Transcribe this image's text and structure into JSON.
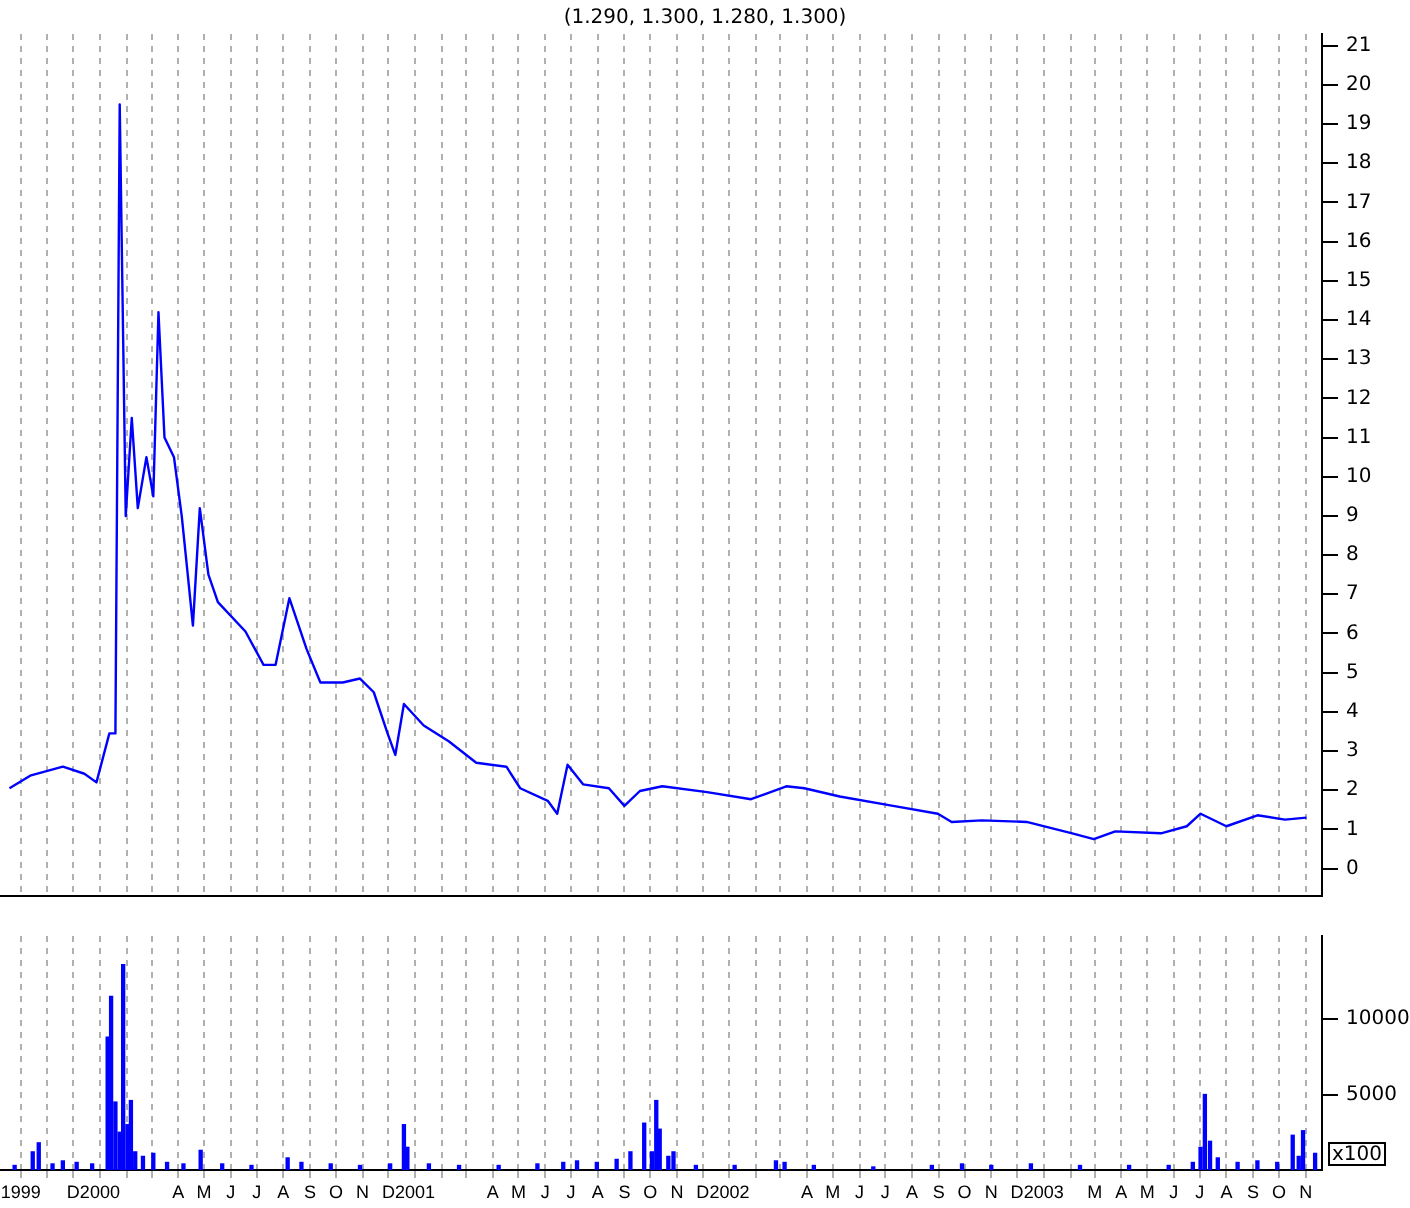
{
  "chart_data": [
    {
      "type": "line",
      "title": "(1.290, 1.300, 1.280, 1.300)",
      "grid": "x",
      "tick_labels": "y",
      "marker": "none",
      "line_style": "solid",
      "xlim": [
        "1999-09-07",
        "2003-11-20"
      ],
      "xticks": [
        {
          "value": "1999-10-01",
          "label": null
        },
        {
          "value": "1999-11-01",
          "label": null
        },
        {
          "value": "1999-12-01",
          "label": null
        },
        {
          "value": "2000-01-01",
          "label": null
        },
        {
          "value": "2000-02-01",
          "label": null
        },
        {
          "value": "2000-03-01",
          "label": null
        },
        {
          "value": "2000-04-01",
          "label": null
        },
        {
          "value": "2000-05-01",
          "label": null
        },
        {
          "value": "2000-06-01",
          "label": null
        },
        {
          "value": "2000-07-01",
          "label": null
        },
        {
          "value": "2000-08-01",
          "label": null
        },
        {
          "value": "2000-09-01",
          "label": null
        },
        {
          "value": "2000-10-01",
          "label": null
        },
        {
          "value": "2000-11-01",
          "label": null
        },
        {
          "value": "2000-12-01",
          "label": null
        },
        {
          "value": "2001-01-01",
          "label": null
        },
        {
          "value": "2001-02-01",
          "label": null
        },
        {
          "value": "2001-03-01",
          "label": null
        },
        {
          "value": "2001-04-01",
          "label": null
        },
        {
          "value": "2001-05-01",
          "label": null
        },
        {
          "value": "2001-06-01",
          "label": null
        },
        {
          "value": "2001-07-01",
          "label": null
        },
        {
          "value": "2001-08-01",
          "label": null
        },
        {
          "value": "2001-09-01",
          "label": null
        },
        {
          "value": "2001-10-01",
          "label": null
        },
        {
          "value": "2001-11-01",
          "label": null
        },
        {
          "value": "2001-12-01",
          "label": null
        },
        {
          "value": "2002-01-01",
          "label": null
        },
        {
          "value": "2002-02-01",
          "label": null
        },
        {
          "value": "2002-03-01",
          "label": null
        },
        {
          "value": "2002-04-01",
          "label": null
        },
        {
          "value": "2002-05-01",
          "label": null
        },
        {
          "value": "2002-06-01",
          "label": null
        },
        {
          "value": "2002-07-01",
          "label": null
        },
        {
          "value": "2002-08-01",
          "label": null
        },
        {
          "value": "2002-09-01",
          "label": null
        },
        {
          "value": "2002-10-01",
          "label": null
        },
        {
          "value": "2002-11-01",
          "label": null
        },
        {
          "value": "2002-12-01",
          "label": null
        },
        {
          "value": "2003-01-01",
          "label": null
        },
        {
          "value": "2003-02-01",
          "label": null
        },
        {
          "value": "2003-03-01",
          "label": null
        },
        {
          "value": "2003-04-01",
          "label": null
        },
        {
          "value": "2003-05-01",
          "label": null
        },
        {
          "value": "2003-06-01",
          "label": null
        },
        {
          "value": "2003-07-01",
          "label": null
        },
        {
          "value": "2003-08-01",
          "label": null
        },
        {
          "value": "2003-09-01",
          "label": null
        },
        {
          "value": "2003-10-01",
          "label": null
        },
        {
          "value": "2003-11-01",
          "label": null
        }
      ],
      "ylim": [
        -0.7,
        21.3
      ],
      "yticks": [
        0,
        1,
        2,
        3,
        4,
        5,
        6,
        7,
        8,
        9,
        10,
        11,
        12,
        13,
        14,
        15,
        16,
        17,
        18,
        19,
        20,
        21
      ],
      "x": [
        "1999-09-18",
        "1999-10-13",
        "1999-11-19",
        "1999-12-14",
        "1999-12-28",
        "2000-01-12",
        "2000-01-19",
        "2000-01-24",
        "2000-01-31",
        "2000-02-07",
        "2000-02-14",
        "2000-02-24",
        "2000-03-03",
        "2000-03-09",
        "2000-03-16",
        "2000-03-27",
        "2000-04-05",
        "2000-04-12",
        "2000-04-18",
        "2000-04-26",
        "2000-05-06",
        "2000-05-17",
        "2000-06-18",
        "2000-07-09",
        "2000-07-23",
        "2000-08-08",
        "2000-08-28",
        "2000-09-13",
        "2000-10-09",
        "2000-10-29",
        "2000-11-14",
        "2000-11-30",
        "2000-12-09",
        "2000-12-19",
        "2001-01-11",
        "2001-02-09",
        "2001-03-13",
        "2001-04-17",
        "2001-05-03",
        "2001-06-04",
        "2001-06-15",
        "2001-06-27",
        "2001-07-15",
        "2001-08-14",
        "2001-09-01",
        "2001-09-19",
        "2001-10-15",
        "2001-12-06",
        "2002-01-26",
        "2002-03-08",
        "2002-03-29",
        "2002-05-09",
        "2002-07-10",
        "2002-08-31",
        "2002-09-16",
        "2002-10-21",
        "2002-12-12",
        "2003-02-03",
        "2003-02-28",
        "2003-03-25",
        "2003-05-17",
        "2003-06-16",
        "2003-07-02",
        "2003-08-01",
        "2003-09-06",
        "2003-10-08",
        "2003-11-02"
      ],
      "series": [
        {
          "color": "#0000ff",
          "values": [
            2.05,
            2.38,
            2.6,
            2.42,
            2.2,
            3.45,
            3.45,
            19.5,
            9,
            11.5,
            9.2,
            10.5,
            9.5,
            14.2,
            11,
            10.5,
            9,
            7.5,
            6.2,
            9.2,
            7.5,
            6.8,
            6.05,
            5.2,
            5.2,
            6.9,
            5.6,
            4.75,
            4.75,
            4.85,
            4.5,
            3.45,
            2.9,
            4.2,
            3.65,
            3.25,
            2.7,
            2.6,
            2.05,
            1.73,
            1.4,
            2.65,
            2.15,
            2.05,
            1.6,
            1.98,
            2.1,
            1.95,
            1.77,
            2.1,
            2.05,
            1.84,
            1.6,
            1.4,
            1.19,
            1.23,
            1.19,
            0.9,
            0.75,
            0.95,
            0.9,
            1.08,
            1.4,
            1.08,
            1.36,
            1.25,
            1.3
          ]
        }
      ]
    },
    {
      "type": "bar",
      "grid": "x",
      "annotations": [
        "x100"
      ],
      "xlim": [
        "1999-09-07",
        "2003-11-20"
      ],
      "xticks": [
        {
          "value": "1999-10-01",
          "label": "1999"
        },
        {
          "value": "1999-11-01",
          "label": null
        },
        {
          "value": "1999-12-01",
          "label": "D"
        },
        {
          "value": "2000-01-01",
          "label": "2000"
        },
        {
          "value": "2000-02-01",
          "label": null
        },
        {
          "value": "2000-03-01",
          "label": null
        },
        {
          "value": "2000-04-01",
          "label": "A"
        },
        {
          "value": "2000-05-01",
          "label": "M"
        },
        {
          "value": "2000-06-01",
          "label": "J"
        },
        {
          "value": "2000-07-01",
          "label": "J"
        },
        {
          "value": "2000-08-01",
          "label": "A"
        },
        {
          "value": "2000-09-01",
          "label": "S"
        },
        {
          "value": "2000-10-01",
          "label": "O"
        },
        {
          "value": "2000-11-01",
          "label": "N"
        },
        {
          "value": "2000-12-01",
          "label": "D"
        },
        {
          "value": "2001-01-01",
          "label": "2001"
        },
        {
          "value": "2001-02-01",
          "label": null
        },
        {
          "value": "2001-03-01",
          "label": null
        },
        {
          "value": "2001-04-01",
          "label": "A"
        },
        {
          "value": "2001-05-01",
          "label": "M"
        },
        {
          "value": "2001-06-01",
          "label": "J"
        },
        {
          "value": "2001-07-01",
          "label": "J"
        },
        {
          "value": "2001-08-01",
          "label": "A"
        },
        {
          "value": "2001-09-01",
          "label": "S"
        },
        {
          "value": "2001-10-01",
          "label": "O"
        },
        {
          "value": "2001-11-01",
          "label": "N"
        },
        {
          "value": "2001-12-01",
          "label": "D"
        },
        {
          "value": "2002-01-01",
          "label": "2002"
        },
        {
          "value": "2002-02-01",
          "label": null
        },
        {
          "value": "2002-03-01",
          "label": null
        },
        {
          "value": "2002-04-01",
          "label": "A"
        },
        {
          "value": "2002-05-01",
          "label": "M"
        },
        {
          "value": "2002-06-01",
          "label": "J"
        },
        {
          "value": "2002-07-01",
          "label": "J"
        },
        {
          "value": "2002-08-01",
          "label": "A"
        },
        {
          "value": "2002-09-01",
          "label": "S"
        },
        {
          "value": "2002-10-01",
          "label": "O"
        },
        {
          "value": "2002-11-01",
          "label": "N"
        },
        {
          "value": "2002-12-01",
          "label": "D"
        },
        {
          "value": "2003-01-01",
          "label": "2003"
        },
        {
          "value": "2003-02-01",
          "label": null
        },
        {
          "value": "2003-03-01",
          "label": "M"
        },
        {
          "value": "2003-04-01",
          "label": "A"
        },
        {
          "value": "2003-05-01",
          "label": "M"
        },
        {
          "value": "2003-06-01",
          "label": "J"
        },
        {
          "value": "2003-07-01",
          "label": "J"
        },
        {
          "value": "2003-08-01",
          "label": "A"
        },
        {
          "value": "2003-09-01",
          "label": "S"
        },
        {
          "value": "2003-10-01",
          "label": "O"
        },
        {
          "value": "2003-11-01",
          "label": "N"
        }
      ],
      "ylim": [
        0,
        15500
      ],
      "yticks": [
        5000,
        10000
      ],
      "x": [
        "1999-09-24",
        "1999-10-15",
        "1999-10-22",
        "1999-11-07",
        "1999-11-19",
        "1999-12-05",
        "1999-12-23",
        "2000-01-10",
        "2000-01-14",
        "2000-01-19",
        "2000-01-24",
        "2000-01-28",
        "2000-02-02",
        "2000-02-06",
        "2000-02-11",
        "2000-02-20",
        "2000-03-03",
        "2000-03-19",
        "2000-04-07",
        "2000-04-27",
        "2000-05-22",
        "2000-06-25",
        "2000-08-06",
        "2000-08-22",
        "2000-09-25",
        "2000-10-29",
        "2000-12-03",
        "2000-12-19",
        "2000-12-23",
        "2001-01-17",
        "2001-02-21",
        "2001-04-08",
        "2001-05-23",
        "2001-06-22",
        "2001-07-08",
        "2001-07-31",
        "2001-08-23",
        "2001-09-08",
        "2001-09-24",
        "2001-10-03",
        "2001-10-08",
        "2001-10-12",
        "2001-10-22",
        "2001-10-28",
        "2001-11-23",
        "2002-01-07",
        "2002-02-24",
        "2002-03-06",
        "2002-04-09",
        "2002-06-17",
        "2002-08-24",
        "2002-09-28",
        "2002-11-01",
        "2002-12-17",
        "2003-02-12",
        "2003-04-10",
        "2003-05-26",
        "2003-06-23",
        "2003-07-02",
        "2003-07-07",
        "2003-07-13",
        "2003-07-22",
        "2003-08-14",
        "2003-09-06",
        "2003-09-29",
        "2003-10-17",
        "2003-10-24",
        "2003-10-29",
        "2003-11-12"
      ],
      "series": [
        {
          "color": "#0000ff",
          "values": [
            300,
            1200,
            1800,
            400,
            600,
            500,
            400,
            8800,
            11500,
            4500,
            2500,
            13600,
            3000,
            4600,
            1200,
            900,
            1100,
            500,
            400,
            1300,
            400,
            300,
            800,
            500,
            400,
            300,
            400,
            3000,
            1500,
            400,
            300,
            300,
            400,
            500,
            600,
            500,
            700,
            1200,
            3100,
            1200,
            4600,
            2700,
            900,
            1200,
            300,
            300,
            600,
            500,
            300,
            200,
            300,
            400,
            300,
            400,
            300,
            300,
            300,
            500,
            1500,
            5000,
            1900,
            800,
            500,
            600,
            500,
            2300,
            900,
            2600,
            1100
          ]
        }
      ]
    }
  ]
}
